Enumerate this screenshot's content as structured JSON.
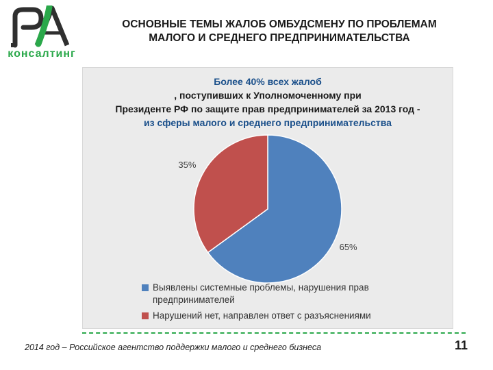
{
  "logo": {
    "caption": "консалтинг",
    "colors": {
      "mark": "#2f2f2f",
      "accent": "#2aa84a"
    }
  },
  "page": {
    "title_line1": "ОСНОВНЫЕ ТЕМЫ ЖАЛОБ ОМБУДСМЕНУ ПО ПРОБЛЕМАМ",
    "title_line2": "МАЛОГО И СРЕДНЕГО ПРЕДПРИНИМАТЕЛЬСТВА",
    "footer": "2014 год – Российское агентство поддержки малого и среднего бизнеса",
    "page_number": "11",
    "accent_color": "#2aa84a"
  },
  "chart_data": {
    "type": "pie",
    "title_line1_highlight": "Более 40% всех жалоб",
    "title_line1_rest": ", поступивших к Уполномоченному при",
    "title_line2": "Президенте РФ по защите прав предпринимателей за 2013 год -",
    "title_line3": "из сферы малого и среднего предпринимательства",
    "slices": [
      {
        "label": "Выявлены системные проблемы, нарушения прав предпринимателей",
        "value": 65,
        "data_label": "65%",
        "color": "#4f81bd"
      },
      {
        "label": "Нарушений нет, направлен ответ с разъяснениями",
        "value": 35,
        "data_label": "35%",
        "color": "#c0504d"
      }
    ],
    "legend_position": "bottom",
    "background": "#ebebeb"
  }
}
